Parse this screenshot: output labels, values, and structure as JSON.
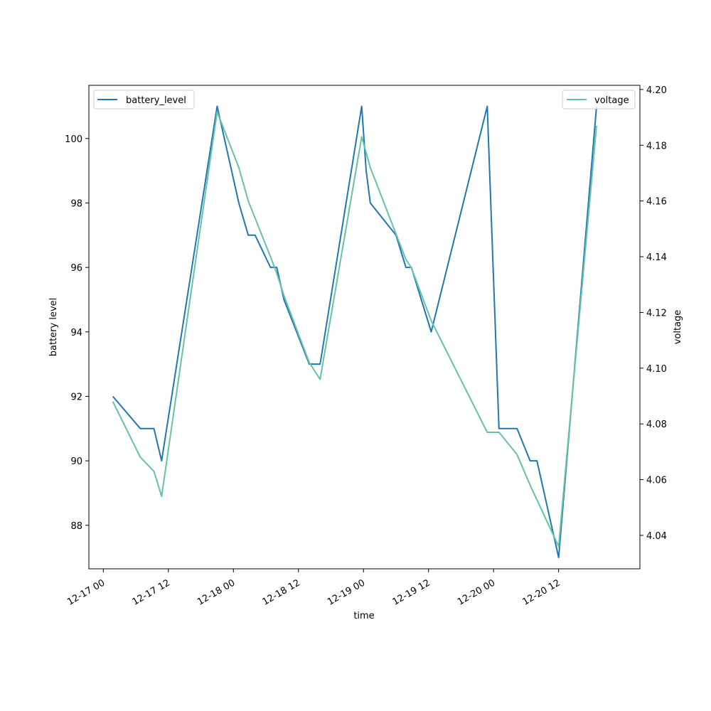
{
  "chart_data": {
    "type": "line",
    "xlabel": "time",
    "ylabel_left": "battery level",
    "ylabel_right": "voltage",
    "x_tick_labels": [
      "12-17 00",
      "12-17 12",
      "12-18 00",
      "12-18 12",
      "12-19 00",
      "12-19 12",
      "12-20 00",
      "12-20 12"
    ],
    "x_ticks": [
      "2023-12-17 00:00",
      "2023-12-17 12:00",
      "2023-12-18 00:00",
      "2023-12-18 12:00",
      "2023-12-19 00:00",
      "2023-12-19 12:00",
      "2023-12-20 00:00",
      "2023-12-20 12:00"
    ],
    "xlim": [
      "2023-12-16 21:20",
      "2023-12-21 03:00"
    ],
    "y_left_ticks": [
      88,
      90,
      92,
      94,
      96,
      98,
      100
    ],
    "y_left_lim": [
      86.65,
      101.65
    ],
    "y_right_ticks": [
      "4.04",
      "4.06",
      "4.08",
      "4.10",
      "4.12",
      "4.14",
      "4.16",
      "4.18",
      "4.20"
    ],
    "y_right_lim": [
      4.028,
      4.2015
    ],
    "series": [
      {
        "name": "battery_level",
        "axis": "left",
        "color": "#1f77b4",
        "points": [
          [
            "2023-12-17 01:45",
            92
          ],
          [
            "2023-12-17 06:50",
            91
          ],
          [
            "2023-12-17 09:20",
            91
          ],
          [
            "2023-12-17 10:45",
            90
          ],
          [
            "2023-12-17 21:00",
            101
          ],
          [
            "2023-12-18 01:00",
            98
          ],
          [
            "2023-12-18 02:45",
            97
          ],
          [
            "2023-12-18 04:00",
            97
          ],
          [
            "2023-12-18 06:50",
            96
          ],
          [
            "2023-12-18 08:00",
            96
          ],
          [
            "2023-12-18 09:20",
            95
          ],
          [
            "2023-12-18 14:00",
            93
          ],
          [
            "2023-12-18 16:00",
            93
          ],
          [
            "2023-12-18 23:40",
            101
          ],
          [
            "2023-12-19 00:30",
            99
          ],
          [
            "2023-12-19 01:15",
            98
          ],
          [
            "2023-12-19 06:00",
            97
          ],
          [
            "2023-12-19 07:50",
            96
          ],
          [
            "2023-12-19 08:50",
            96
          ],
          [
            "2023-12-19 12:30",
            94
          ],
          [
            "2023-12-19 22:50",
            101
          ],
          [
            "2023-12-20 01:00",
            91
          ],
          [
            "2023-12-20 04:20",
            91
          ],
          [
            "2023-12-20 06:45",
            90
          ],
          [
            "2023-12-20 08:00",
            90
          ],
          [
            "2023-12-20 12:00",
            87
          ],
          [
            "2023-12-20 19:00",
            101
          ]
        ]
      },
      {
        "name": "voltage",
        "axis": "right",
        "color": "#66c2a5",
        "points": [
          [
            "2023-12-17 01:45",
            4.088
          ],
          [
            "2023-12-17 06:50",
            4.068
          ],
          [
            "2023-12-17 09:20",
            4.063
          ],
          [
            "2023-12-17 10:45",
            4.054
          ],
          [
            "2023-12-17 21:00",
            4.192
          ],
          [
            "2023-12-18 01:00",
            4.172
          ],
          [
            "2023-12-18 02:45",
            4.16
          ],
          [
            "2023-12-18 06:50",
            4.14
          ],
          [
            "2023-12-18 08:00",
            4.134
          ],
          [
            "2023-12-18 09:20",
            4.126
          ],
          [
            "2023-12-18 14:00",
            4.102
          ],
          [
            "2023-12-18 16:00",
            4.096
          ],
          [
            "2023-12-18 23:40",
            4.183
          ],
          [
            "2023-12-19 01:15",
            4.172
          ],
          [
            "2023-12-19 07:50",
            4.139
          ],
          [
            "2023-12-19 08:50",
            4.136
          ],
          [
            "2023-12-19 12:30",
            4.117
          ],
          [
            "2023-12-19 22:50",
            4.077
          ],
          [
            "2023-12-20 01:00",
            4.077
          ],
          [
            "2023-12-20 04:20",
            4.069
          ],
          [
            "2023-12-20 06:45",
            4.058
          ],
          [
            "2023-12-20 10:20",
            4.043
          ],
          [
            "2023-12-20 12:00",
            4.036
          ],
          [
            "2023-12-20 19:00",
            4.187
          ]
        ]
      }
    ],
    "legend_left": {
      "placement": "top-left",
      "label": "battery_level"
    },
    "legend_right": {
      "placement": "top-right",
      "label": "voltage"
    },
    "grid": false
  }
}
